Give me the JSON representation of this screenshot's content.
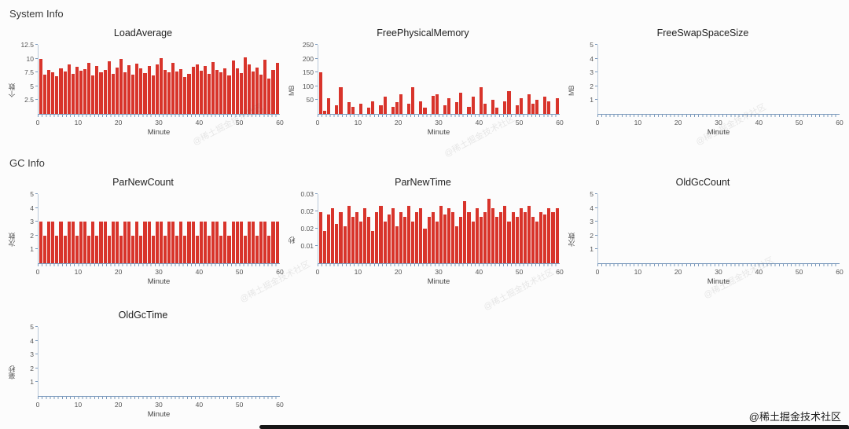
{
  "page": {
    "section1_title": "System Info",
    "section2_title": "GC Info",
    "watermark_text": "@稀土掘金技术社区",
    "credit_text": "@稀土掘金技术社区",
    "bar_color": "#d8342b",
    "axis_color": "#7d9bbd"
  },
  "chart_data": [
    {
      "type": "bar",
      "title": "LoadAverage",
      "ylabel": "个数",
      "xlabel": "Minute",
      "ylim": 12.5,
      "ytick_values": [
        2.5,
        5,
        7.5,
        10,
        12.5
      ],
      "ytick_labels": [
        "2.5",
        "5",
        "7.5",
        "10",
        "12.5"
      ],
      "xticks": [
        0,
        10,
        20,
        30,
        40,
        50,
        60
      ],
      "x_range": [
        0,
        60
      ],
      "values": [
        9.9,
        7.1,
        8.0,
        7.6,
        6.8,
        8.2,
        7.7,
        9.0,
        7.3,
        8.5,
        7.8,
        8.1,
        9.3,
        7.0,
        8.7,
        7.5,
        7.9,
        9.5,
        7.2,
        8.4,
        10.0,
        7.6,
        8.8,
        7.1,
        9.1,
        8.3,
        7.4,
        8.6,
        6.9,
        8.9,
        10.1,
        8.0,
        7.5,
        9.2,
        7.7,
        8.1,
        6.7,
        7.3,
        8.5,
        9.0,
        7.8,
        8.7,
        7.2,
        9.4,
        7.9,
        7.6,
        8.3,
        7.0,
        9.6,
        8.2,
        7.4,
        10.3,
        8.9,
        7.7,
        8.4,
        7.1,
        9.8,
        6.4,
        8.0,
        9.2
      ]
    },
    {
      "type": "bar",
      "title": "FreePhysicalMemory",
      "ylabel": "MB",
      "xlabel": "Minute",
      "ylim": 250,
      "ytick_values": [
        50,
        100,
        150,
        200,
        250
      ],
      "ytick_labels": [
        "50",
        "100",
        "150",
        "200",
        "250"
      ],
      "xticks": [
        0,
        10,
        20,
        30,
        40,
        50,
        60
      ],
      "x_range": [
        0,
        60
      ],
      "values": [
        152,
        12,
        58,
        0,
        32,
        96,
        0,
        42,
        26,
        0,
        36,
        0,
        22,
        46,
        0,
        32,
        62,
        0,
        26,
        42,
        72,
        0,
        36,
        98,
        0,
        46,
        22,
        0,
        66,
        72,
        0,
        32,
        56,
        0,
        42,
        76,
        0,
        26,
        62,
        0,
        96,
        36,
        0,
        52,
        22,
        0,
        46,
        82,
        0,
        32,
        56,
        0,
        72,
        36,
        52,
        0,
        62,
        46,
        0,
        56
      ]
    },
    {
      "type": "bar",
      "title": "FreeSwapSpaceSize",
      "ylabel": "MB",
      "xlabel": "Minute",
      "ylim": 5,
      "ytick_values": [
        1,
        2,
        3,
        4,
        5
      ],
      "ytick_labels": [
        "1",
        "2",
        "3",
        "4",
        "5"
      ],
      "xticks": [
        0,
        10,
        20,
        30,
        40,
        50,
        60
      ],
      "x_range": [
        0,
        60
      ],
      "values": []
    },
    {
      "type": "bar",
      "title": "ParNewCount",
      "ylabel": "次数",
      "xlabel": "Minute",
      "ylim": 5,
      "ytick_values": [
        1,
        2,
        3,
        4,
        5
      ],
      "ytick_labels": [
        "1",
        "2",
        "3",
        "4",
        "5"
      ],
      "xticks": [
        0,
        10,
        20,
        30,
        40,
        50,
        60
      ],
      "x_range": [
        0,
        60
      ],
      "values": [
        3,
        2,
        3,
        3,
        2,
        3,
        2,
        3,
        3,
        2,
        3,
        3,
        2,
        3,
        2,
        3,
        3,
        2,
        3,
        3,
        2,
        3,
        3,
        2,
        3,
        2,
        3,
        3,
        2,
        3,
        3,
        2,
        3,
        3,
        2,
        3,
        2,
        3,
        3,
        2,
        3,
        3,
        2,
        3,
        3,
        2,
        3,
        2,
        3,
        3,
        3,
        2,
        3,
        3,
        2,
        3,
        3,
        2,
        3,
        3
      ]
    },
    {
      "type": "bar",
      "title": "ParNewTime",
      "ylabel": "秒",
      "xlabel": "Minute",
      "ylim": 0.03,
      "ytick_values": [
        0.0075,
        0.015,
        0.0225,
        0.03
      ],
      "ytick_labels": [
        "0.01",
        "0.02",
        "0.02",
        "0.03"
      ],
      "xticks": [
        0,
        10,
        20,
        30,
        40,
        50,
        60
      ],
      "x_range": [
        0,
        60
      ],
      "values": [
        0.022,
        0.014,
        0.021,
        0.024,
        0.017,
        0.022,
        0.016,
        0.025,
        0.02,
        0.022,
        0.018,
        0.024,
        0.02,
        0.014,
        0.022,
        0.025,
        0.018,
        0.021,
        0.024,
        0.016,
        0.022,
        0.02,
        0.025,
        0.018,
        0.022,
        0.024,
        0.015,
        0.02,
        0.022,
        0.018,
        0.025,
        0.021,
        0.024,
        0.022,
        0.016,
        0.02,
        0.027,
        0.022,
        0.018,
        0.024,
        0.02,
        0.022,
        0.028,
        0.024,
        0.02,
        0.022,
        0.025,
        0.018,
        0.022,
        0.02,
        0.024,
        0.022,
        0.025,
        0.02,
        0.018,
        0.022,
        0.021,
        0.024,
        0.022,
        0.024
      ]
    },
    {
      "type": "bar",
      "title": "OldGcCount",
      "ylabel": "次数",
      "xlabel": "Minute",
      "ylim": 5,
      "ytick_values": [
        1,
        2,
        3,
        4,
        5
      ],
      "ytick_labels": [
        "1",
        "2",
        "3",
        "4",
        "5"
      ],
      "xticks": [
        0,
        10,
        20,
        30,
        40,
        50,
        60
      ],
      "x_range": [
        0,
        60
      ],
      "values": []
    },
    {
      "type": "bar",
      "title": "OldGcTime",
      "ylabel": "毫秒",
      "xlabel": "Minute",
      "ylim": 5,
      "ytick_values": [
        1,
        2,
        3,
        4,
        5
      ],
      "ytick_labels": [
        "1",
        "2",
        "3",
        "4",
        "5"
      ],
      "xticks": [
        0,
        10,
        20,
        30,
        40,
        50,
        60
      ],
      "x_range": [
        0,
        60
      ],
      "values": []
    }
  ]
}
